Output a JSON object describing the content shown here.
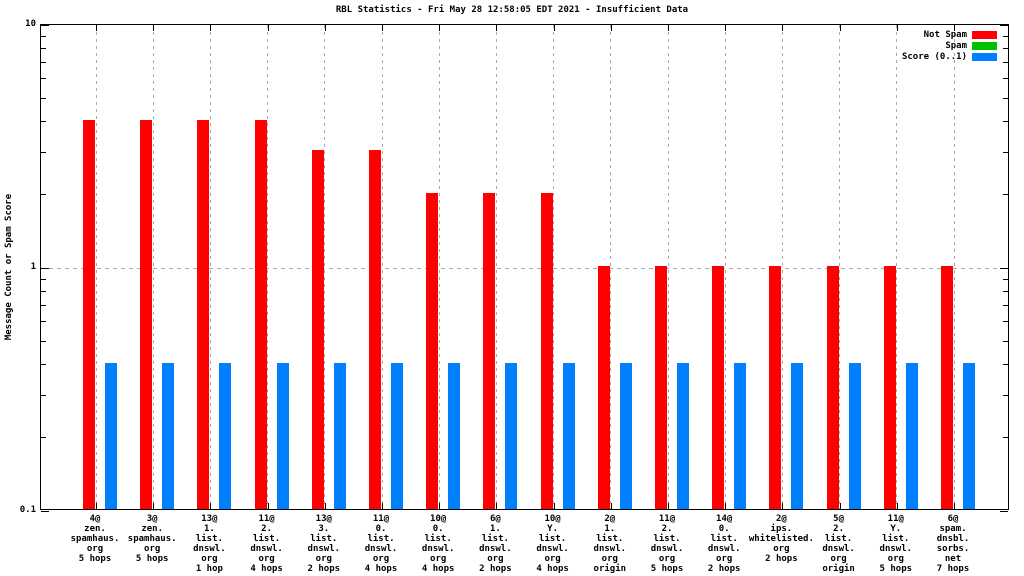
{
  "title": "RBL Statistics - Fri May 28 12:58:05 EDT 2021 - Insufficient Data",
  "y_axis": {
    "label": "Message Count or Spam Score",
    "ticks": [
      {
        "label": "10",
        "value": 10
      },
      {
        "label": "1",
        "value": 1
      },
      {
        "label": "0.1",
        "value": 0.1
      }
    ]
  },
  "legend": [
    {
      "label": "Not Spam",
      "color": "#ff0000"
    },
    {
      "label": "Spam",
      "color": "#00c000"
    },
    {
      "label": "Score (0..1)",
      "color": "#0080ff"
    }
  ],
  "colors": {
    "not_spam": "#ff0000",
    "spam": "#00c000",
    "score": "#0080ff",
    "grid": "#a8a8a8",
    "axis": "#000000",
    "background": "#ffffff"
  },
  "chart_data": {
    "type": "bar",
    "y_scale": "log",
    "ylim": [
      0.1,
      10
    ],
    "grid": true,
    "legend_position": "top-right",
    "title": "RBL Statistics - Fri May 28 12:58:05 EDT 2021 - Insufficient Data",
    "ylabel": "Message Count or Spam Score",
    "xlabel": "",
    "categories": [
      [
        "4@",
        "zen.",
        "spamhaus.",
        "org",
        "5 hops"
      ],
      [
        "3@",
        "zen.",
        "spamhaus.",
        "org",
        "5 hops"
      ],
      [
        "13@",
        "1.",
        "list.",
        "dnswl.",
        "org",
        "1 hop"
      ],
      [
        "11@",
        "2.",
        "list.",
        "dnswl.",
        "org",
        "4 hops"
      ],
      [
        "13@",
        "3.",
        "list.",
        "dnswl.",
        "org",
        "2 hops"
      ],
      [
        "11@",
        "0.",
        "list.",
        "dnswl.",
        "org",
        "4 hops"
      ],
      [
        "10@",
        "0.",
        "list.",
        "dnswl.",
        "org",
        "4 hops"
      ],
      [
        "6@",
        "1.",
        "list.",
        "dnswl.",
        "org",
        "2 hops"
      ],
      [
        "10@",
        "Y.",
        "list.",
        "dnswl.",
        "org",
        "4 hops"
      ],
      [
        "2@",
        "1.",
        "list.",
        "dnswl.",
        "org",
        "origin"
      ],
      [
        "11@",
        "2.",
        "list.",
        "dnswl.",
        "org",
        "5 hops"
      ],
      [
        "14@",
        "0.",
        "list.",
        "dnswl.",
        "org",
        "2 hops"
      ],
      [
        "2@",
        "ips.",
        "whitelisted.",
        "org",
        "2 hops"
      ],
      [
        "5@",
        "2.",
        "list.",
        "dnswl.",
        "org",
        "origin"
      ],
      [
        "11@",
        "Y.",
        "list.",
        "dnswl.",
        "org",
        "5 hops"
      ],
      [
        "6@",
        "spam.",
        "dnsbl.",
        "sorbs.",
        "net",
        "7 hops"
      ]
    ],
    "series": [
      {
        "name": "Not Spam",
        "color": "#ff0000",
        "values": [
          4,
          4,
          4,
          4,
          3,
          3,
          2,
          2,
          2,
          1,
          1,
          1,
          1,
          1,
          1,
          1
        ]
      },
      {
        "name": "Spam",
        "color": "#00c000",
        "values": [
          0,
          0,
          0,
          0,
          0,
          0,
          0,
          0,
          0,
          0,
          0,
          0,
          0,
          0,
          0,
          0
        ]
      },
      {
        "name": "Score (0..1)",
        "color": "#0080ff",
        "values": [
          0.4,
          0.4,
          0.4,
          0.4,
          0.4,
          0.4,
          0.4,
          0.4,
          0.4,
          0.4,
          0.4,
          0.4,
          0.4,
          0.4,
          0.4,
          0.4
        ]
      }
    ]
  }
}
